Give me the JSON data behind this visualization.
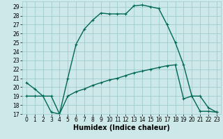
{
  "xlabel": "Humidex (Indice chaleur)",
  "bg_color": "#cce8e8",
  "grid_color": "#a0cccc",
  "line_color": "#006655",
  "xlim": [
    -0.5,
    23.5
  ],
  "ylim": [
    17,
    29.6
  ],
  "yticks": [
    17,
    18,
    19,
    20,
    21,
    22,
    23,
    24,
    25,
    26,
    27,
    28,
    29
  ],
  "xticks": [
    0,
    1,
    2,
    3,
    4,
    5,
    6,
    7,
    8,
    9,
    10,
    11,
    12,
    13,
    14,
    15,
    16,
    17,
    18,
    19,
    20,
    21,
    22,
    23
  ],
  "line1_x": [
    0,
    1,
    2,
    3,
    4,
    5,
    6,
    7,
    8,
    9,
    10,
    11,
    12,
    13,
    14,
    15,
    16,
    17,
    18,
    19,
    20,
    21,
    22,
    23
  ],
  "line1_y": [
    20.5,
    19.8,
    19.0,
    17.2,
    17.0,
    21.0,
    24.8,
    26.5,
    27.5,
    28.3,
    28.2,
    28.2,
    28.2,
    29.1,
    29.2,
    29.0,
    28.8,
    27.0,
    25.0,
    22.5,
    19.0,
    19.0,
    17.7,
    17.2
  ],
  "line2_x": [
    0,
    1,
    2,
    3,
    4,
    5,
    6,
    7,
    8,
    9,
    10,
    11,
    12,
    13,
    14,
    15,
    16,
    17,
    18,
    19,
    20,
    21,
    22,
    23
  ],
  "line2_y": [
    19.0,
    19.0,
    19.0,
    19.0,
    17.0,
    19.0,
    19.5,
    19.8,
    20.2,
    20.5,
    20.8,
    21.0,
    21.3,
    21.6,
    21.8,
    22.0,
    22.2,
    22.4,
    22.5,
    18.7,
    19.0,
    17.3,
    17.3,
    17.2
  ],
  "marker_style": "+",
  "marker_size": 3.5,
  "line_width": 1.0,
  "xlabel_fontsize": 7,
  "tick_fontsize": 5.5
}
